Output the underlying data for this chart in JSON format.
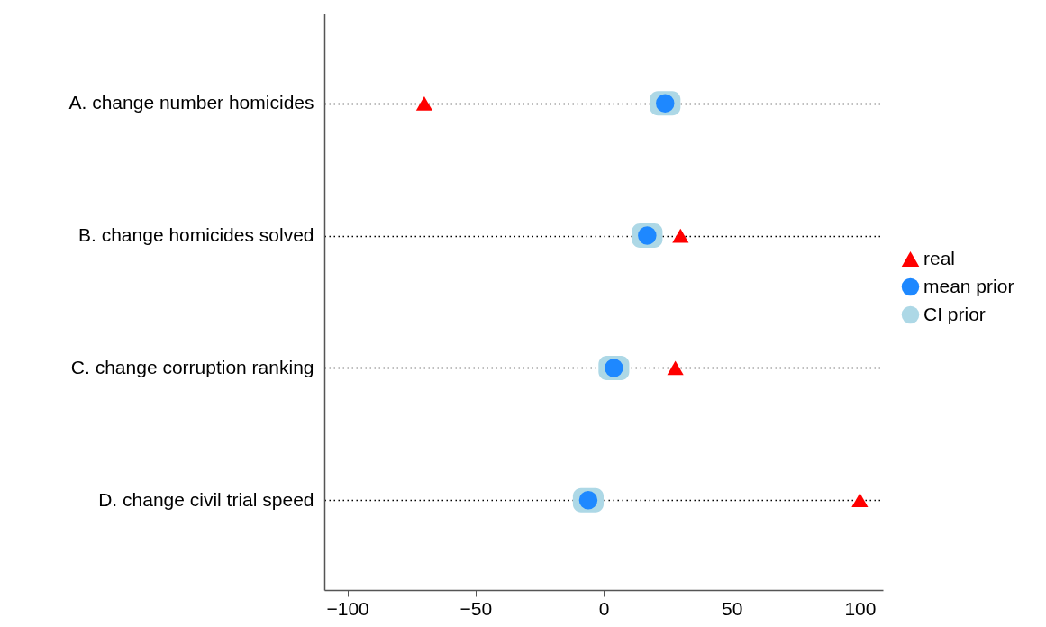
{
  "chart_data": {
    "type": "scatter",
    "orientation": "horizontal",
    "categories": [
      "A. change number homicides",
      "B. change homicides solved",
      "C. change corruption ranking",
      "D. change civil trial speed"
    ],
    "series": [
      {
        "name": "real",
        "marker": "triangle",
        "color": "#ff0000",
        "values": [
          -70,
          30,
          28,
          100
        ]
      },
      {
        "name": "mean prior",
        "marker": "circle",
        "color": "#1e88ff",
        "values": [
          24,
          17,
          4,
          -6
        ]
      },
      {
        "name": "CI prior",
        "type": "bar",
        "color": "#add8e6",
        "base": [
          18,
          11,
          -2,
          -12
        ],
        "values": [
          12,
          12,
          12,
          12
        ]
      }
    ],
    "xlim": [
      -109,
      109
    ],
    "xticks": [
      -100,
      -50,
      0,
      50,
      100
    ],
    "grid": "y",
    "legend": "right"
  }
}
